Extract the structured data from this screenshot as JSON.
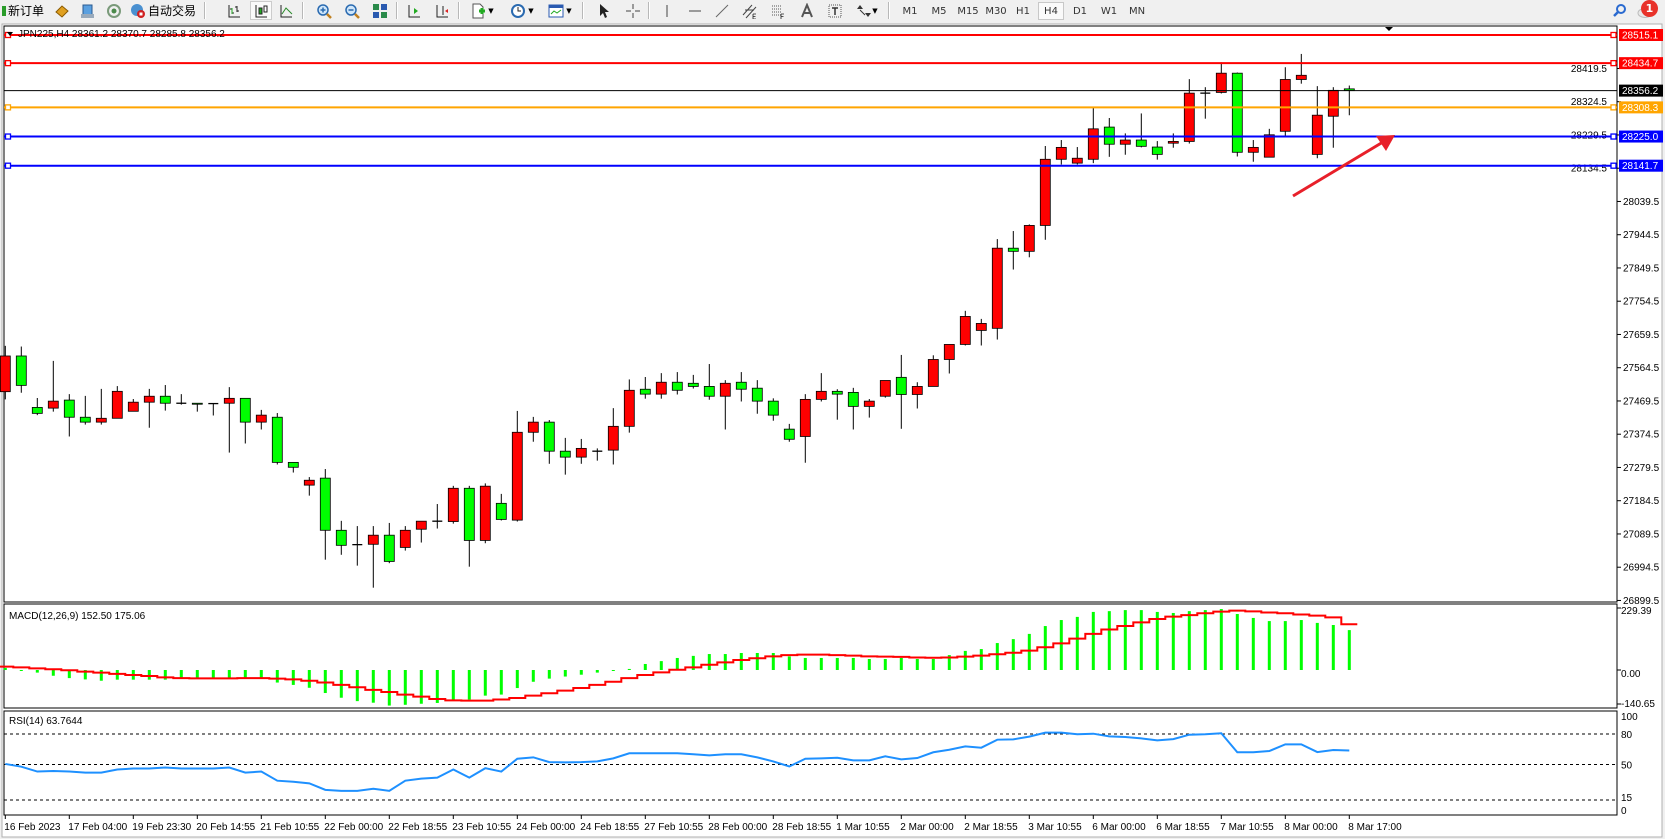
{
  "toolbar": {
    "new_order_label": "新订单",
    "auto_trading_label": "自动交易",
    "icons": [
      "new-order-icon",
      "market-watch-icon",
      "data-window-icon",
      "navigator-signal-icon",
      "auto-trading-icon",
      "bar-chart-icon",
      "candlestick-chart-icon",
      "line-chart-icon",
      "zoom-in-icon",
      "zoom-out-icon",
      "tile-windows-icon",
      "chart-shift-icon",
      "auto-scroll-icon",
      "indicators-icon",
      "periods-clock-icon",
      "templates-icon",
      "cursor-icon",
      "crosshair-icon",
      "vertical-line-icon",
      "horizontal-line-icon",
      "trendline-icon",
      "equidistant-channel-icon",
      "fibonacci-icon",
      "text-icon",
      "text-label-icon",
      "arrows-icon",
      "search-icon",
      "notifications-icon"
    ],
    "timeframes": [
      "M1",
      "M5",
      "M15",
      "M30",
      "H1",
      "H4",
      "D1",
      "W1",
      "MN"
    ],
    "active_timeframe": "H4",
    "notification_count": "1"
  },
  "chart": {
    "header": "JPN225,H4  28361.2 28370.7 28285.8 28356.2",
    "symbol": "JPN225",
    "timeframe": "H4",
    "price_ticks": [
      "28419.5",
      "28324.5",
      "28229.5",
      "28134.5",
      "28039.5",
      "27944.5",
      "27849.5",
      "27754.5",
      "27659.5",
      "27564.5",
      "27469.5",
      "27374.5",
      "27279.5",
      "27184.5",
      "27089.5",
      "26994.5",
      "26899.5"
    ],
    "horizontal_lines": [
      {
        "price": "28515.1",
        "color": "#ff0000"
      },
      {
        "price": "28434.7",
        "color": "#ff0000"
      },
      {
        "price": "28308.3",
        "color": "#ffa500"
      },
      {
        "price": "28225.0",
        "color": "#0000ff"
      },
      {
        "price": "28141.7",
        "color": "#0000ff"
      }
    ],
    "current_price": "28356.2",
    "annotation_arrow_color": "#e8202a",
    "date_labels": [
      "16 Feb 2023",
      "17 Feb 04:00",
      "19 Feb 23:30",
      "20 Feb 14:55",
      "21 Feb 10:55",
      "22 Feb 00:00",
      "22 Feb 18:55",
      "23 Feb 10:55",
      "24 Feb 00:00",
      "24 Feb 18:55",
      "27 Feb 10:55",
      "28 Feb 00:00",
      "28 Feb 18:55",
      "1 Mar 10:55",
      "2 Mar 00:00",
      "2 Mar 18:55",
      "3 Mar 10:55",
      "6 Mar 00:00",
      "6 Mar 18:55",
      "7 Mar 10:55",
      "8 Mar 00:00",
      "8 Mar 17:00"
    ],
    "colors": {
      "bull": "#ff0000",
      "bear": "#00ff00",
      "doji": "#000000",
      "macd_hist": "#00ff00",
      "macd_signal": "#ff0000",
      "rsi": "#1e90ff"
    }
  },
  "chart_data": [
    {
      "type": "candlestick",
      "series_format": "OHLC",
      "ohlc": [
        [
          27496,
          27627,
          27474,
          27598
        ],
        [
          27598,
          27625,
          27493,
          27514
        ],
        [
          27451,
          27478,
          27429,
          27434
        ],
        [
          27449,
          27584,
          27439,
          27469
        ],
        [
          27472,
          27489,
          27368,
          27423
        ],
        [
          27423,
          27484,
          27402,
          27409
        ],
        [
          27409,
          27504,
          27402,
          27420
        ],
        [
          27420,
          27512,
          27420,
          27497
        ],
        [
          27440,
          27475,
          27440,
          27466
        ],
        [
          27466,
          27504,
          27393,
          27483
        ],
        [
          27483,
          27515,
          27442,
          27463
        ],
        [
          27463,
          27489,
          27459,
          27463
        ],
        [
          27463,
          27463,
          27439,
          27462
        ],
        [
          27462,
          27462,
          27428,
          27462
        ],
        [
          27463,
          27509,
          27322,
          27477
        ],
        [
          27477,
          27477,
          27348,
          27409
        ],
        [
          27409,
          27444,
          27388,
          27429
        ],
        [
          27423,
          27435,
          27288,
          27294
        ],
        [
          27294,
          27294,
          27265,
          27280
        ],
        [
          27229,
          27252,
          27199,
          27243
        ],
        [
          27249,
          27275,
          27016,
          27100
        ],
        [
          27100,
          27127,
          27030,
          27057
        ],
        [
          27059,
          27112,
          26999,
          27059
        ],
        [
          27060,
          27112,
          26936,
          27086
        ],
        [
          27086,
          27121,
          27006,
          27011
        ],
        [
          27051,
          27112,
          27042,
          27100
        ],
        [
          27103,
          27126,
          27065,
          27126
        ],
        [
          27126,
          27175,
          27105,
          27126
        ],
        [
          27125,
          27227,
          27119,
          27220
        ],
        [
          27220,
          27227,
          26996,
          27071
        ],
        [
          27071,
          27234,
          27063,
          27226
        ],
        [
          27177,
          27204,
          27128,
          27131
        ],
        [
          27129,
          27441,
          27125,
          27380
        ],
        [
          27380,
          27424,
          27353,
          27409
        ],
        [
          27409,
          27415,
          27290,
          27326
        ],
        [
          27326,
          27364,
          27259,
          27309
        ],
        [
          27309,
          27361,
          27290,
          27334
        ],
        [
          27326,
          27334,
          27299,
          27326
        ],
        [
          27329,
          27449,
          27288,
          27397
        ],
        [
          27397,
          27531,
          27379,
          27500
        ],
        [
          27503,
          27538,
          27476,
          27489
        ],
        [
          27489,
          27549,
          27476,
          27523
        ],
        [
          27523,
          27552,
          27488,
          27500
        ],
        [
          27520,
          27544,
          27505,
          27511
        ],
        [
          27511,
          27575,
          27473,
          27483
        ],
        [
          27483,
          27529,
          27388,
          27520
        ],
        [
          27523,
          27552,
          27468,
          27503
        ],
        [
          27506,
          27529,
          27433,
          27469
        ],
        [
          27469,
          27477,
          27413,
          27429
        ],
        [
          27389,
          27404,
          27353,
          27360
        ],
        [
          27368,
          27489,
          27293,
          27474
        ],
        [
          27474,
          27549,
          27468,
          27497
        ],
        [
          27497,
          27503,
          27416,
          27489
        ],
        [
          27494,
          27507,
          27388,
          27454
        ],
        [
          27454,
          27475,
          27422,
          27469
        ],
        [
          27483,
          27528,
          27479,
          27528
        ],
        [
          27537,
          27601,
          27390,
          27488
        ],
        [
          27488,
          27523,
          27448,
          27511
        ],
        [
          27511,
          27600,
          27511,
          27588
        ],
        [
          27588,
          27631,
          27548,
          27631
        ],
        [
          27631,
          27727,
          27628,
          27711
        ],
        [
          27671,
          27704,
          27628,
          27691
        ],
        [
          27677,
          27932,
          27645,
          27906
        ],
        [
          27906,
          27955,
          27845,
          27897
        ],
        [
          27897,
          27974,
          27880,
          27971
        ],
        [
          27971,
          28198,
          27930,
          28160
        ],
        [
          28160,
          28215,
          28145,
          28194
        ],
        [
          28149,
          28195,
          28145,
          28163
        ],
        [
          28160,
          28307,
          28149,
          28247
        ],
        [
          28252,
          28278,
          28167,
          28203
        ],
        [
          28203,
          28234,
          28173,
          28215
        ],
        [
          28215,
          28291,
          28194,
          28197
        ],
        [
          28195,
          28212,
          28159,
          28174
        ],
        [
          28206,
          28234,
          28193,
          28211
        ],
        [
          28211,
          28389,
          28205,
          28349
        ],
        [
          28349,
          28366,
          28276,
          28349
        ],
        [
          28351,
          28437,
          28348,
          28406
        ],
        [
          28406,
          28408,
          28168,
          28180
        ],
        [
          28180,
          28215,
          28153,
          28194
        ],
        [
          28166,
          28247,
          28166,
          28230
        ],
        [
          28240,
          28423,
          28227,
          28388
        ],
        [
          28388,
          28461,
          28376,
          28400
        ],
        [
          28174,
          28369,
          28163,
          28286
        ],
        [
          28283,
          28366,
          28193,
          28357
        ],
        [
          28361.2,
          28370.7,
          28285.8,
          28356.2
        ]
      ],
      "ylim": [
        26899.5,
        28515.1
      ]
    },
    {
      "type": "bar",
      "title": "MACD(12,26,9) 152.50 175.06",
      "axis_labels": [
        "229.39",
        "0.00",
        "-140.65"
      ],
      "ylim": [
        -140.65,
        229.39
      ],
      "histogram": [
        8,
        -1,
        -10,
        -22,
        -31,
        -36,
        -41,
        -37,
        -37,
        -37,
        -37,
        -29,
        -29,
        -29,
        -29,
        -29,
        -33,
        -48,
        -57,
        -68,
        -88,
        -106,
        -119,
        -125,
        -136,
        -133,
        -129,
        -126,
        -116,
        -113,
        -98,
        -94,
        -69,
        -45,
        -33,
        -25,
        -18,
        -10,
        -1,
        4,
        23,
        34,
        46,
        54,
        61,
        61,
        65,
        65,
        65,
        52,
        46,
        46,
        46,
        46,
        42,
        42,
        46,
        42,
        42,
        57,
        73,
        80,
        103,
        118,
        138,
        168,
        191,
        203,
        222,
        225,
        229,
        229,
        222,
        218,
        225,
        229,
        233,
        214,
        199,
        187,
        187,
        191,
        180,
        172,
        152.5
      ],
      "signal": [
        13,
        10,
        6,
        3,
        -1,
        -6,
        -10,
        -15,
        -19,
        -23,
        -28,
        -31,
        -32,
        -32,
        -32,
        -31,
        -31,
        -33,
        -36,
        -41,
        -48,
        -57,
        -66,
        -76,
        -84,
        -94,
        -102,
        -111,
        -116,
        -117,
        -117,
        -113,
        -107,
        -98,
        -89,
        -79,
        -69,
        -57,
        -45,
        -31,
        -19,
        -9,
        1,
        10,
        20,
        29,
        38,
        45,
        52,
        57,
        59,
        59,
        57,
        55,
        52,
        51,
        50,
        48,
        47,
        48,
        51,
        55,
        60,
        66,
        74,
        87,
        102,
        120,
        138,
        155,
        168,
        182,
        195,
        204,
        210,
        217,
        223,
        227,
        224,
        220,
        217,
        212,
        208,
        201,
        175.06
      ]
    },
    {
      "type": "line",
      "title": "RSI(14) 63.7644",
      "axis_labels": [
        "100",
        "80",
        "50",
        "15",
        "0"
      ],
      "levels": [
        80,
        50,
        15
      ],
      "ylim": [
        0,
        100
      ],
      "values": [
        50.5,
        47.8,
        43,
        43.6,
        43,
        42,
        42,
        45,
        46,
        46,
        47,
        46,
        46,
        46,
        47,
        42,
        43,
        34,
        33,
        31.4,
        25,
        24,
        24,
        26,
        24,
        34,
        36,
        37,
        45,
        37,
        46.3,
        43,
        55.6,
        57,
        52.3,
        52,
        52.3,
        53,
        56,
        61,
        61,
        61,
        61,
        60,
        59,
        60,
        60,
        57,
        53,
        48,
        55.6,
        56,
        56.6,
        54,
        54,
        58,
        55,
        56.3,
        62,
        64.5,
        67.8,
        66.5,
        74.4,
        74.7,
        77.4,
        81.3,
        81.3,
        79.7,
        80.3,
        77.7,
        77,
        75.7,
        73.7,
        75,
        79.3,
        79.7,
        80.7,
        62,
        62,
        63.2,
        69.8,
        69.8,
        62.2,
        64.2,
        63.76
      ]
    }
  ]
}
